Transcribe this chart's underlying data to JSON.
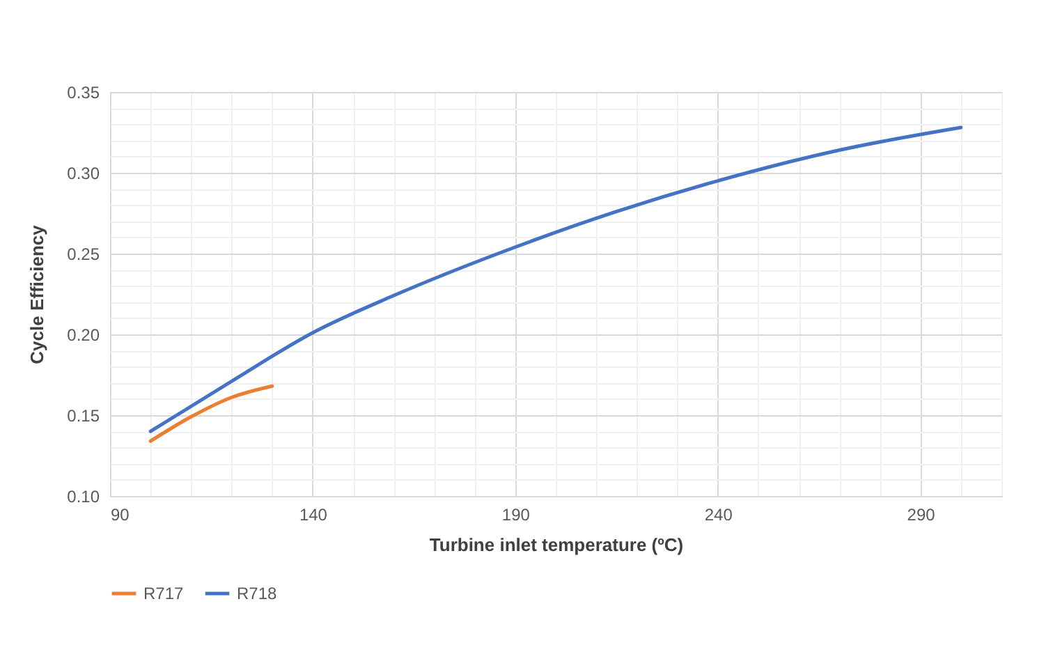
{
  "chart_data": {
    "type": "line",
    "xlabel": "Turbine inlet temperature (ºC)",
    "ylabel": "Cycle Efficiency",
    "series": [
      {
        "name": "R717",
        "color": "#ed7d31",
        "x": [
          100,
          110,
          120,
          130
        ],
        "values": [
          0.134,
          0.149,
          0.161,
          0.168
        ]
      },
      {
        "name": "R718",
        "color": "#4472c4",
        "x": [
          100,
          120,
          140,
          160,
          190,
          215,
          240,
          270,
          300
        ],
        "values": [
          0.14,
          0.171,
          0.201,
          0.224,
          0.254,
          0.276,
          0.295,
          0.314,
          0.328
        ]
      }
    ],
    "xlim": [
      90,
      310
    ],
    "xticks": [
      90,
      {
        "value": 100,
        "label": null
      },
      {
        "value": 110,
        "label": null
      },
      {
        "value": 120,
        "label": null
      },
      {
        "value": 130,
        "label": null
      },
      140,
      {
        "value": 150,
        "label": null
      },
      {
        "value": 160,
        "label": null
      },
      {
        "value": 170,
        "label": null
      },
      {
        "value": 180,
        "label": null
      },
      190,
      {
        "value": 200,
        "label": null
      },
      {
        "value": 210,
        "label": null
      },
      {
        "value": 220,
        "label": null
      },
      {
        "value": 230,
        "label": null
      },
      240,
      {
        "value": 250,
        "label": null
      },
      {
        "value": 260,
        "label": null
      },
      {
        "value": 270,
        "label": null
      },
      {
        "value": 280,
        "label": null
      },
      290,
      {
        "value": 300,
        "label": null
      },
      {
        "value": 310,
        "label": null
      }
    ],
    "ylim": [
      0.1,
      0.35
    ],
    "yticks": [
      {
        "value": 0.1,
        "label": "0.10"
      },
      {
        "value": 0.11,
        "label": null
      },
      {
        "value": 0.12,
        "label": null
      },
      {
        "value": 0.13,
        "label": null
      },
      {
        "value": 0.14,
        "label": null
      },
      {
        "value": 0.15,
        "label": "0.15"
      },
      {
        "value": 0.16,
        "label": null
      },
      {
        "value": 0.17,
        "label": null
      },
      {
        "value": 0.18,
        "label": null
      },
      {
        "value": 0.19,
        "label": null
      },
      {
        "value": 0.2,
        "label": "0.20"
      },
      {
        "value": 0.21,
        "label": null
      },
      {
        "value": 0.22,
        "label": null
      },
      {
        "value": 0.23,
        "label": null
      },
      {
        "value": 0.24,
        "label": null
      },
      {
        "value": 0.25,
        "label": "0.25"
      },
      {
        "value": 0.26,
        "label": null
      },
      {
        "value": 0.27,
        "label": null
      },
      {
        "value": 0.28,
        "label": null
      },
      {
        "value": 0.29,
        "label": null
      },
      {
        "value": 0.3,
        "label": "0.30"
      },
      {
        "value": 0.31,
        "label": null
      },
      {
        "value": 0.32,
        "label": null
      },
      {
        "value": 0.33,
        "label": null
      },
      {
        "value": 0.34,
        "label": null
      },
      {
        "value": 0.35,
        "label": "0.35"
      }
    ],
    "grid": true,
    "legend": "bottom",
    "marker": "none",
    "line_style": "solid"
  }
}
